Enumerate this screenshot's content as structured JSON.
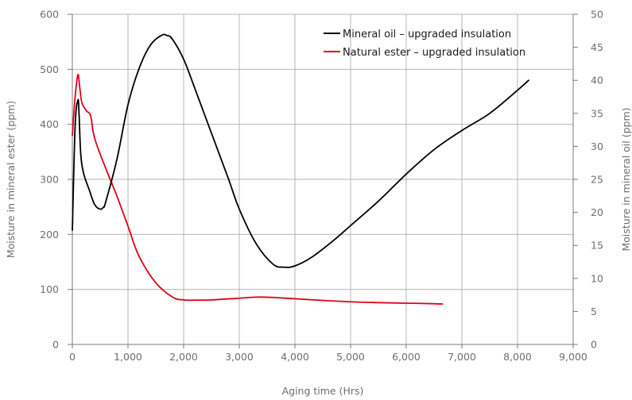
{
  "chart_data": {
    "type": "line",
    "title": "",
    "xlabel": "Aging time (Hrs)",
    "ylabel_left": "Moisture in mineral ester (ppm)",
    "ylabel_right": "Moisture in mineral oil (ppm)",
    "xlim": [
      0,
      9000
    ],
    "ylim_left": [
      0,
      600
    ],
    "ylim_right": [
      0,
      50
    ],
    "xticks": [
      0,
      1000,
      2000,
      3000,
      4000,
      5000,
      6000,
      7000,
      8000,
      9000
    ],
    "xtick_labels": [
      "0",
      "1,000",
      "2,000",
      "3,000",
      "4,000",
      "5,000",
      "6,000",
      "7,000",
      "8,000",
      "9,000"
    ],
    "yticks_left": [
      0,
      100,
      200,
      300,
      400,
      500,
      600
    ],
    "ytick_labels_left": [
      "0",
      "100",
      "200",
      "300",
      "400",
      "500",
      "600"
    ],
    "yticks_right": [
      0,
      5,
      10,
      15,
      20,
      25,
      30,
      35,
      40,
      45,
      50
    ],
    "ytick_labels_right": [
      "0",
      "5",
      "10",
      "15",
      "20",
      "25",
      "30",
      "35",
      "40",
      "45",
      "50"
    ],
    "grid": true,
    "legend_position": "top-right",
    "series": [
      {
        "name": "Mineral oil – upgraded insulation",
        "color": "#000000",
        "axis": "right",
        "x": [
          0,
          50,
          100,
          120,
          150,
          200,
          300,
          400,
          500,
          560,
          600,
          800,
          1000,
          1200,
          1400,
          1600,
          1700,
          1800,
          2000,
          2200,
          2500,
          2800,
          3000,
          3300,
          3600,
          3800,
          4000,
          4300,
          4700,
          5000,
          5500,
          6000,
          6500,
          7000,
          7500,
          8000,
          8200
        ],
        "y": [
          17.3,
          33,
          37,
          35,
          29,
          26,
          23.5,
          21.2,
          20.5,
          20.8,
          21.6,
          28,
          36.3,
          41.8,
          45.3,
          46.8,
          46.8,
          46.2,
          43.2,
          38.8,
          32,
          25.2,
          20.5,
          15.3,
          12.2,
          11.7,
          11.9,
          13.2,
          15.8,
          18,
          21.7,
          25.8,
          29.5,
          32.4,
          35,
          38.5,
          40
        ]
      },
      {
        "name": "Natural ester – upgraded insulation",
        "color": "#e2001a",
        "axis": "left",
        "x": [
          0,
          50,
          100,
          130,
          170,
          250,
          330,
          400,
          600,
          800,
          1000,
          1200,
          1500,
          1800,
          2000,
          2200,
          2500,
          3000,
          3300,
          3600,
          4000,
          4500,
          5000,
          5500,
          6000,
          6500,
          6650
        ],
        "y": [
          380,
          450,
          490,
          470,
          440,
          425,
          415,
          375,
          320,
          270,
          215,
          160,
          112,
          86,
          81,
          80.5,
          81,
          84,
          86,
          85.5,
          83,
          80,
          77.5,
          76,
          75,
          74,
          73.5
        ]
      }
    ]
  }
}
